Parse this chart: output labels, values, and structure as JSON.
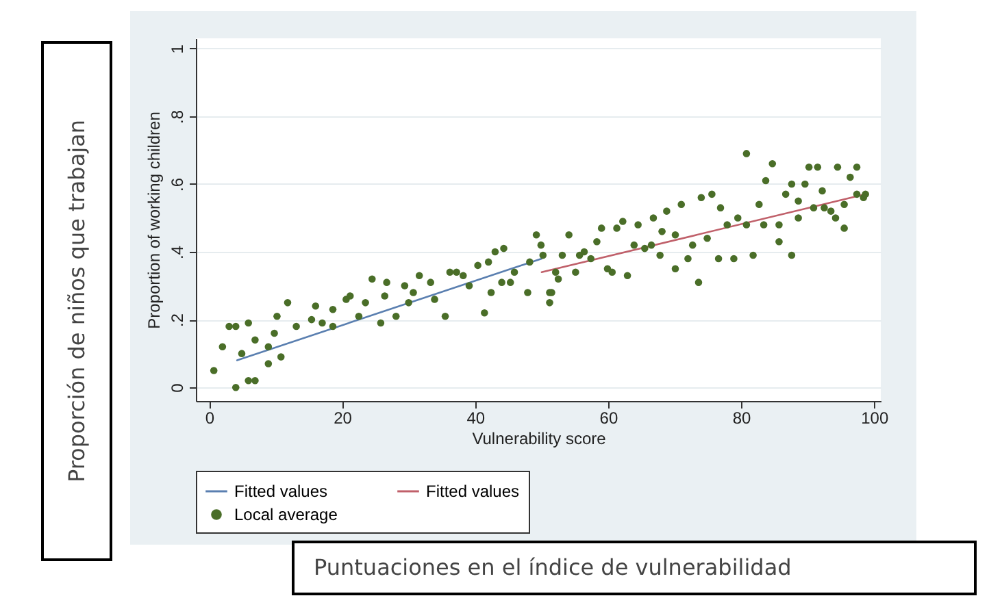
{
  "chart_data": {
    "type": "scatter",
    "xlabel": "Vulnerability score",
    "ylabel": "Proportion of working children",
    "annotations": [
      "Proporción de niños que trabajan",
      "Puntuaciones en el índice de vulnerabilidad"
    ],
    "xlim": [
      -2,
      101
    ],
    "xticks": [
      0,
      20,
      40,
      60,
      80,
      100
    ],
    "ylim": [
      -0.04,
      1.03
    ],
    "yticks": [
      0,
      {
        "value": 0.2,
        "label": ".2"
      },
      {
        "value": 0.4,
        "label": ".4"
      },
      {
        "value": 0.6,
        "label": ".6"
      },
      {
        "value": 0.8,
        "label": ".8"
      },
      1
    ],
    "grid": "y",
    "legend": "bottom",
    "series": [
      {
        "name": "Fitted values",
        "type": "line",
        "color": "#5a7fb0",
        "x": [
          4.2,
          50
        ],
        "values": [
          0.08,
          0.38
        ]
      },
      {
        "name": "Fitted values",
        "type": "line",
        "color": "#c0606a",
        "x": [
          50,
          98.7
        ],
        "values": [
          0.34,
          0.57
        ]
      },
      {
        "name": "Local average",
        "marker": "circle",
        "color": "#4a6e28",
        "x": [
          0.7,
          2.0,
          3.0,
          4.0,
          4.0,
          5.9,
          5.9,
          6.9,
          6.9,
          4.9,
          8.9,
          8.9,
          9.8,
          10.2,
          11.8,
          10.8,
          13.1,
          16.0,
          15.4,
          17.0,
          18.6,
          18.6,
          20.6,
          21.2,
          22.5,
          23.5,
          24.5,
          25.8,
          26.4,
          26.7,
          28.1,
          29.4,
          30.0,
          30.7,
          31.6,
          33.3,
          33.9,
          35.5,
          36.2,
          37.2,
          38.2,
          39.1,
          40.4,
          41.4,
          42.0,
          42.4,
          43.0,
          44.3,
          44.0,
          45.3,
          45.9,
          47.9,
          48.2,
          49.2,
          49.9,
          50.2,
          51.5,
          52.1,
          51.2,
          51.2,
          52.5,
          53.1,
          54.1,
          55.1,
          55.7,
          56.4,
          57.4,
          58.3,
          59.0,
          59.9,
          60.6,
          61.3,
          62.2,
          62.9,
          63.9,
          64.5,
          65.5,
          66.5,
          66.8,
          67.8,
          68.1,
          68.8,
          70.1,
          70.1,
          71.0,
          72.0,
          72.7,
          73.6,
          74.0,
          74.9,
          75.6,
          76.6,
          76.9,
          77.9,
          78.9,
          79.5,
          80.8,
          80.8,
          81.8,
          82.7,
          83.4,
          83.7,
          84.7,
          85.7,
          85.7,
          86.7,
          87.6,
          87.6,
          88.6,
          88.6,
          89.6,
          90.2,
          90.9,
          91.5,
          92.2,
          92.5,
          93.5,
          94.2,
          94.5,
          95.5,
          95.5,
          96.4,
          97.4,
          97.4,
          98.4,
          98.7
        ],
        "values": [
          0.05,
          0.12,
          0.18,
          0.18,
          0.0,
          0.02,
          0.19,
          0.14,
          0.02,
          0.1,
          0.12,
          0.07,
          0.16,
          0.21,
          0.25,
          0.09,
          0.18,
          0.24,
          0.2,
          0.19,
          0.23,
          0.18,
          0.26,
          0.27,
          0.21,
          0.25,
          0.32,
          0.19,
          0.27,
          0.31,
          0.21,
          0.3,
          0.25,
          0.28,
          0.33,
          0.31,
          0.26,
          0.21,
          0.34,
          0.34,
          0.33,
          0.3,
          0.36,
          0.22,
          0.37,
          0.28,
          0.4,
          0.41,
          0.31,
          0.31,
          0.34,
          0.28,
          0.37,
          0.45,
          0.42,
          0.39,
          0.28,
          0.34,
          0.28,
          0.25,
          0.32,
          0.39,
          0.45,
          0.34,
          0.39,
          0.4,
          0.38,
          0.43,
          0.47,
          0.35,
          0.34,
          0.47,
          0.49,
          0.33,
          0.42,
          0.48,
          0.41,
          0.42,
          0.5,
          0.39,
          0.46,
          0.52,
          0.35,
          0.45,
          0.54,
          0.38,
          0.42,
          0.31,
          0.56,
          0.44,
          0.57,
          0.38,
          0.53,
          0.48,
          0.38,
          0.5,
          0.69,
          0.48,
          0.39,
          0.54,
          0.48,
          0.61,
          0.66,
          0.43,
          0.48,
          0.57,
          0.39,
          0.6,
          0.55,
          0.5,
          0.6,
          0.65,
          0.53,
          0.65,
          0.58,
          0.53,
          0.52,
          0.5,
          0.65,
          0.47,
          0.54,
          0.62,
          0.65,
          0.57,
          0.56,
          0.57
        ]
      }
    ]
  }
}
